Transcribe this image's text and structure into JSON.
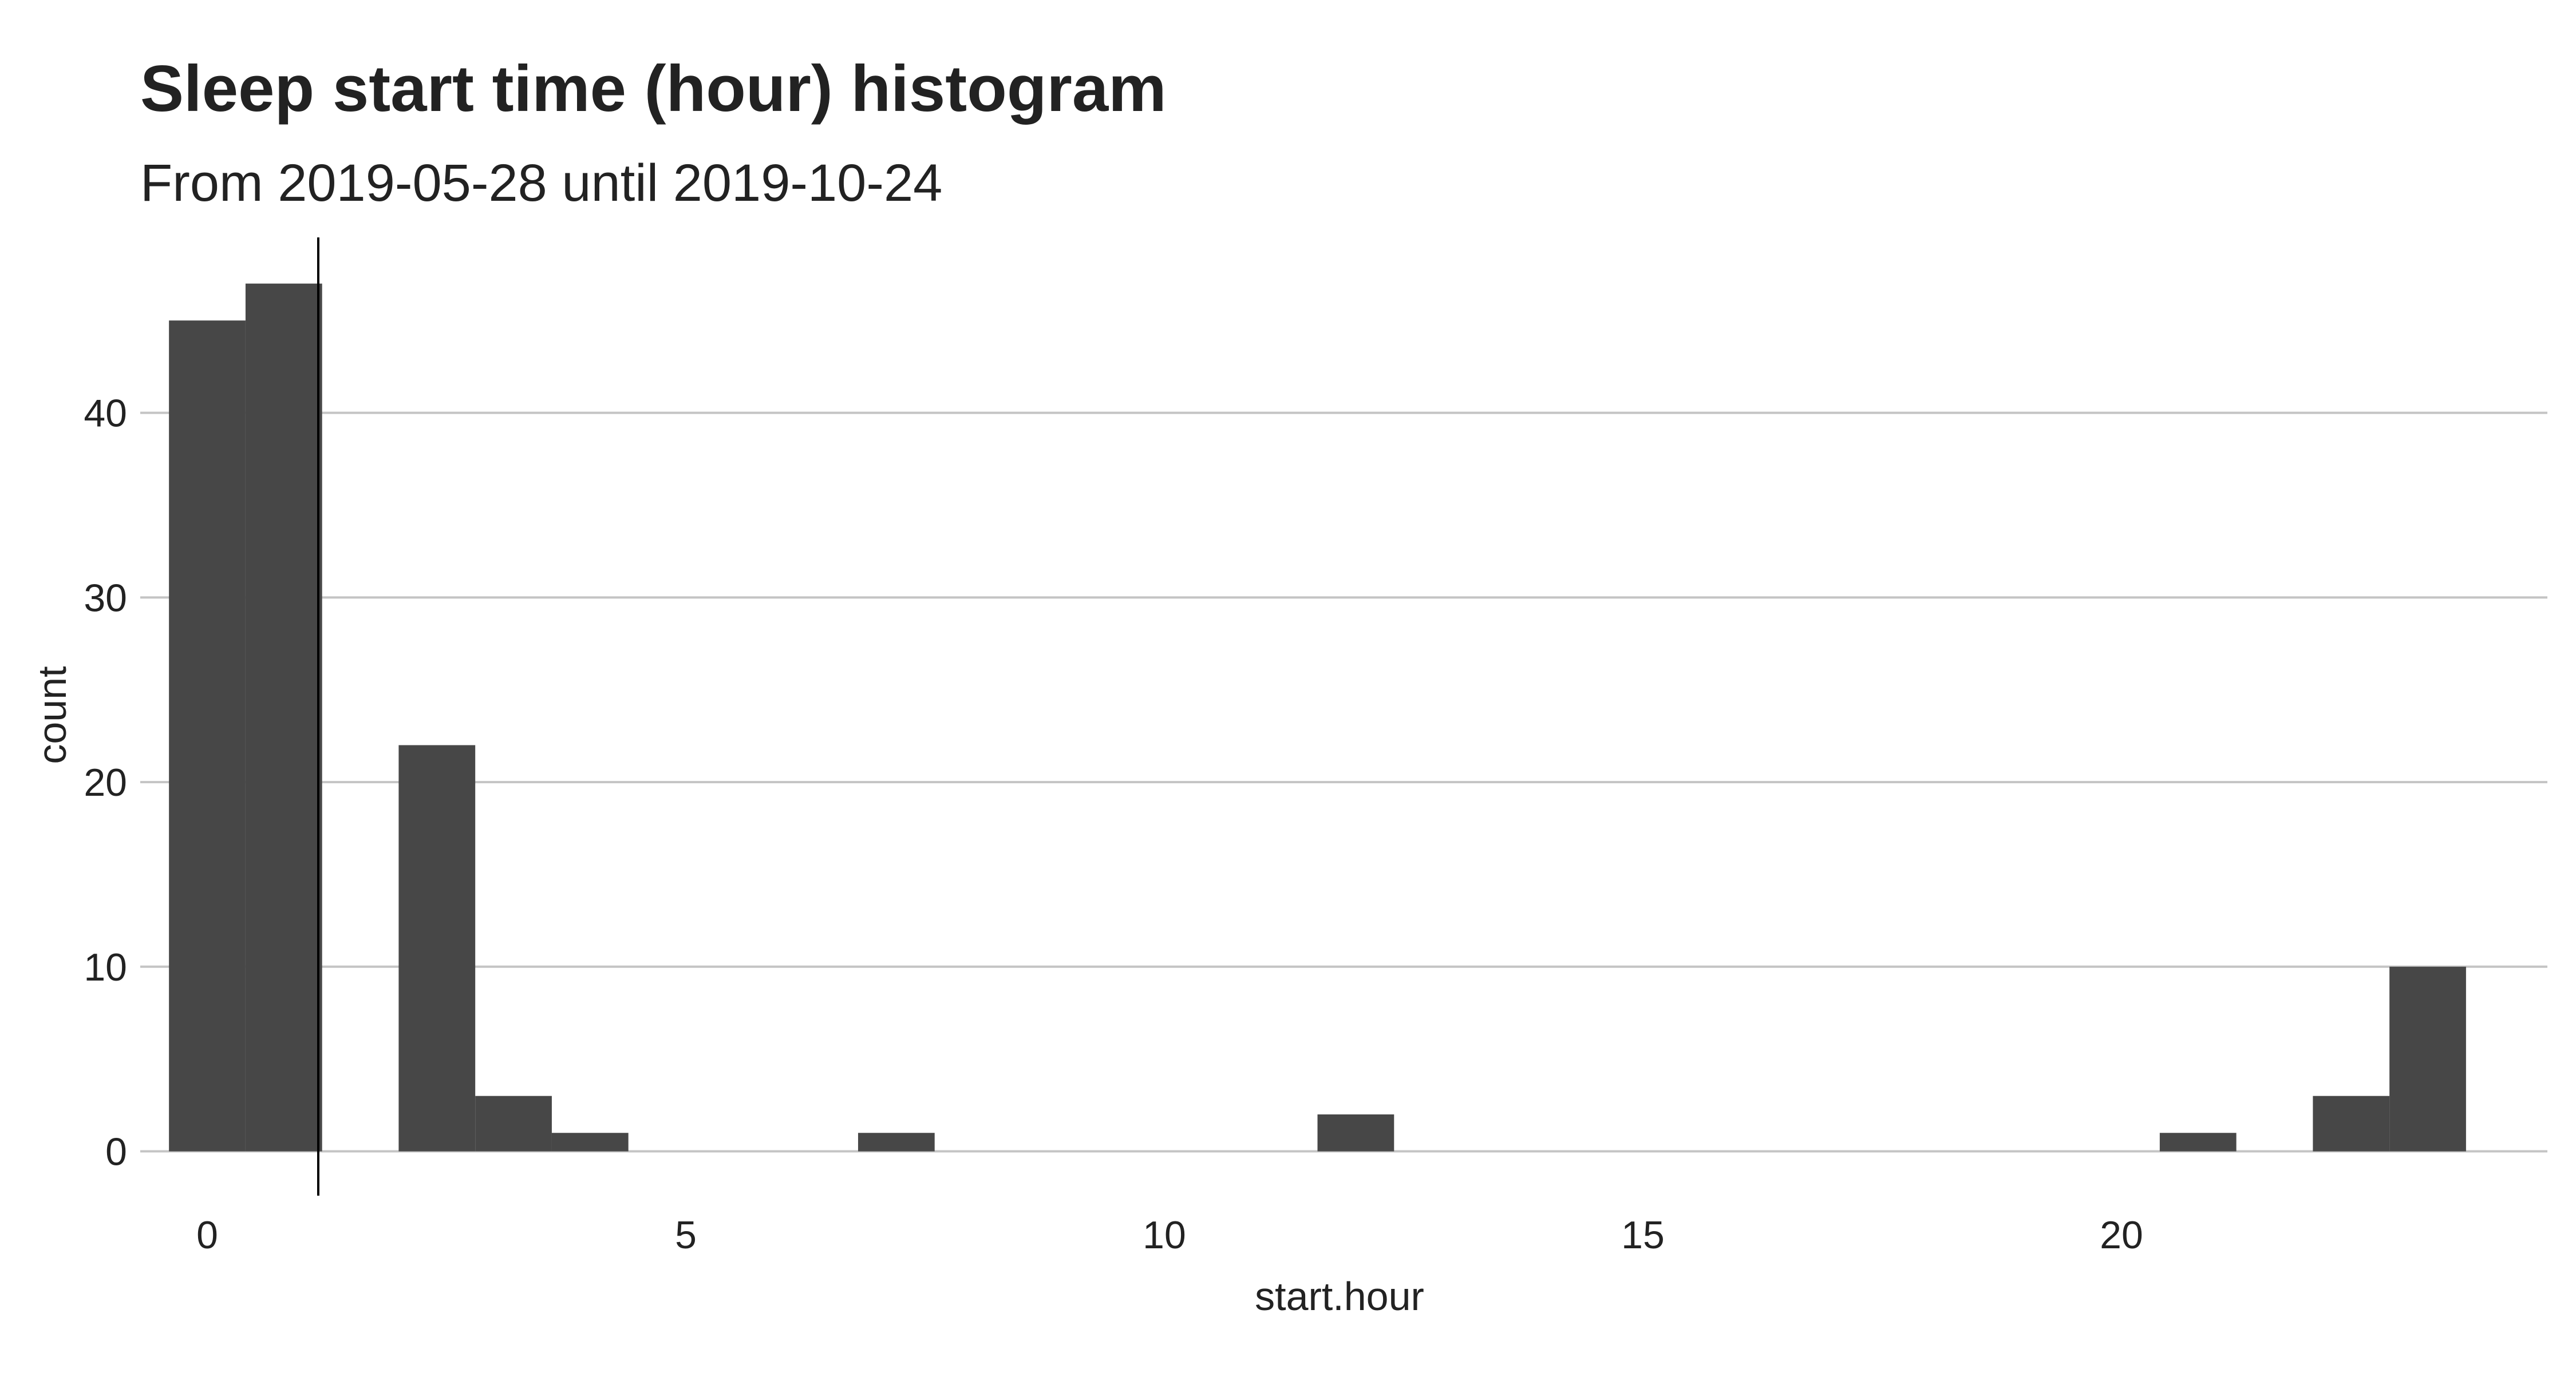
{
  "chart_data": {
    "type": "bar",
    "title": "Sleep start time (hour) histogram",
    "subtitle": "From 2019-05-28 until 2019-10-24",
    "xlabel": "start.hour",
    "ylabel": "count",
    "bin_width": 0.8,
    "bins": [
      {
        "x": 0.0,
        "count": 45
      },
      {
        "x": 0.8,
        "count": 47
      },
      {
        "x": 2.4,
        "count": 22
      },
      {
        "x": 3.2,
        "count": 3
      },
      {
        "x": 4.0,
        "count": 1
      },
      {
        "x": 7.2,
        "count": 1
      },
      {
        "x": 12.0,
        "count": 2
      },
      {
        "x": 20.8,
        "count": 1
      },
      {
        "x": 22.4,
        "count": 3
      },
      {
        "x": 23.2,
        "count": 10
      }
    ],
    "vline_x": 1.16,
    "xlim": [
      -0.7,
      24.45
    ],
    "ylim": [
      -2.4,
      49.5
    ],
    "x_ticks": [
      "0",
      "5",
      "10",
      "15",
      "20"
    ],
    "y_ticks": [
      "0",
      "10",
      "20",
      "30",
      "40"
    ],
    "grid": "horizontal",
    "colors": {
      "bar": "#474747",
      "grid": "#c4c4c4",
      "vline": "#000000"
    }
  }
}
